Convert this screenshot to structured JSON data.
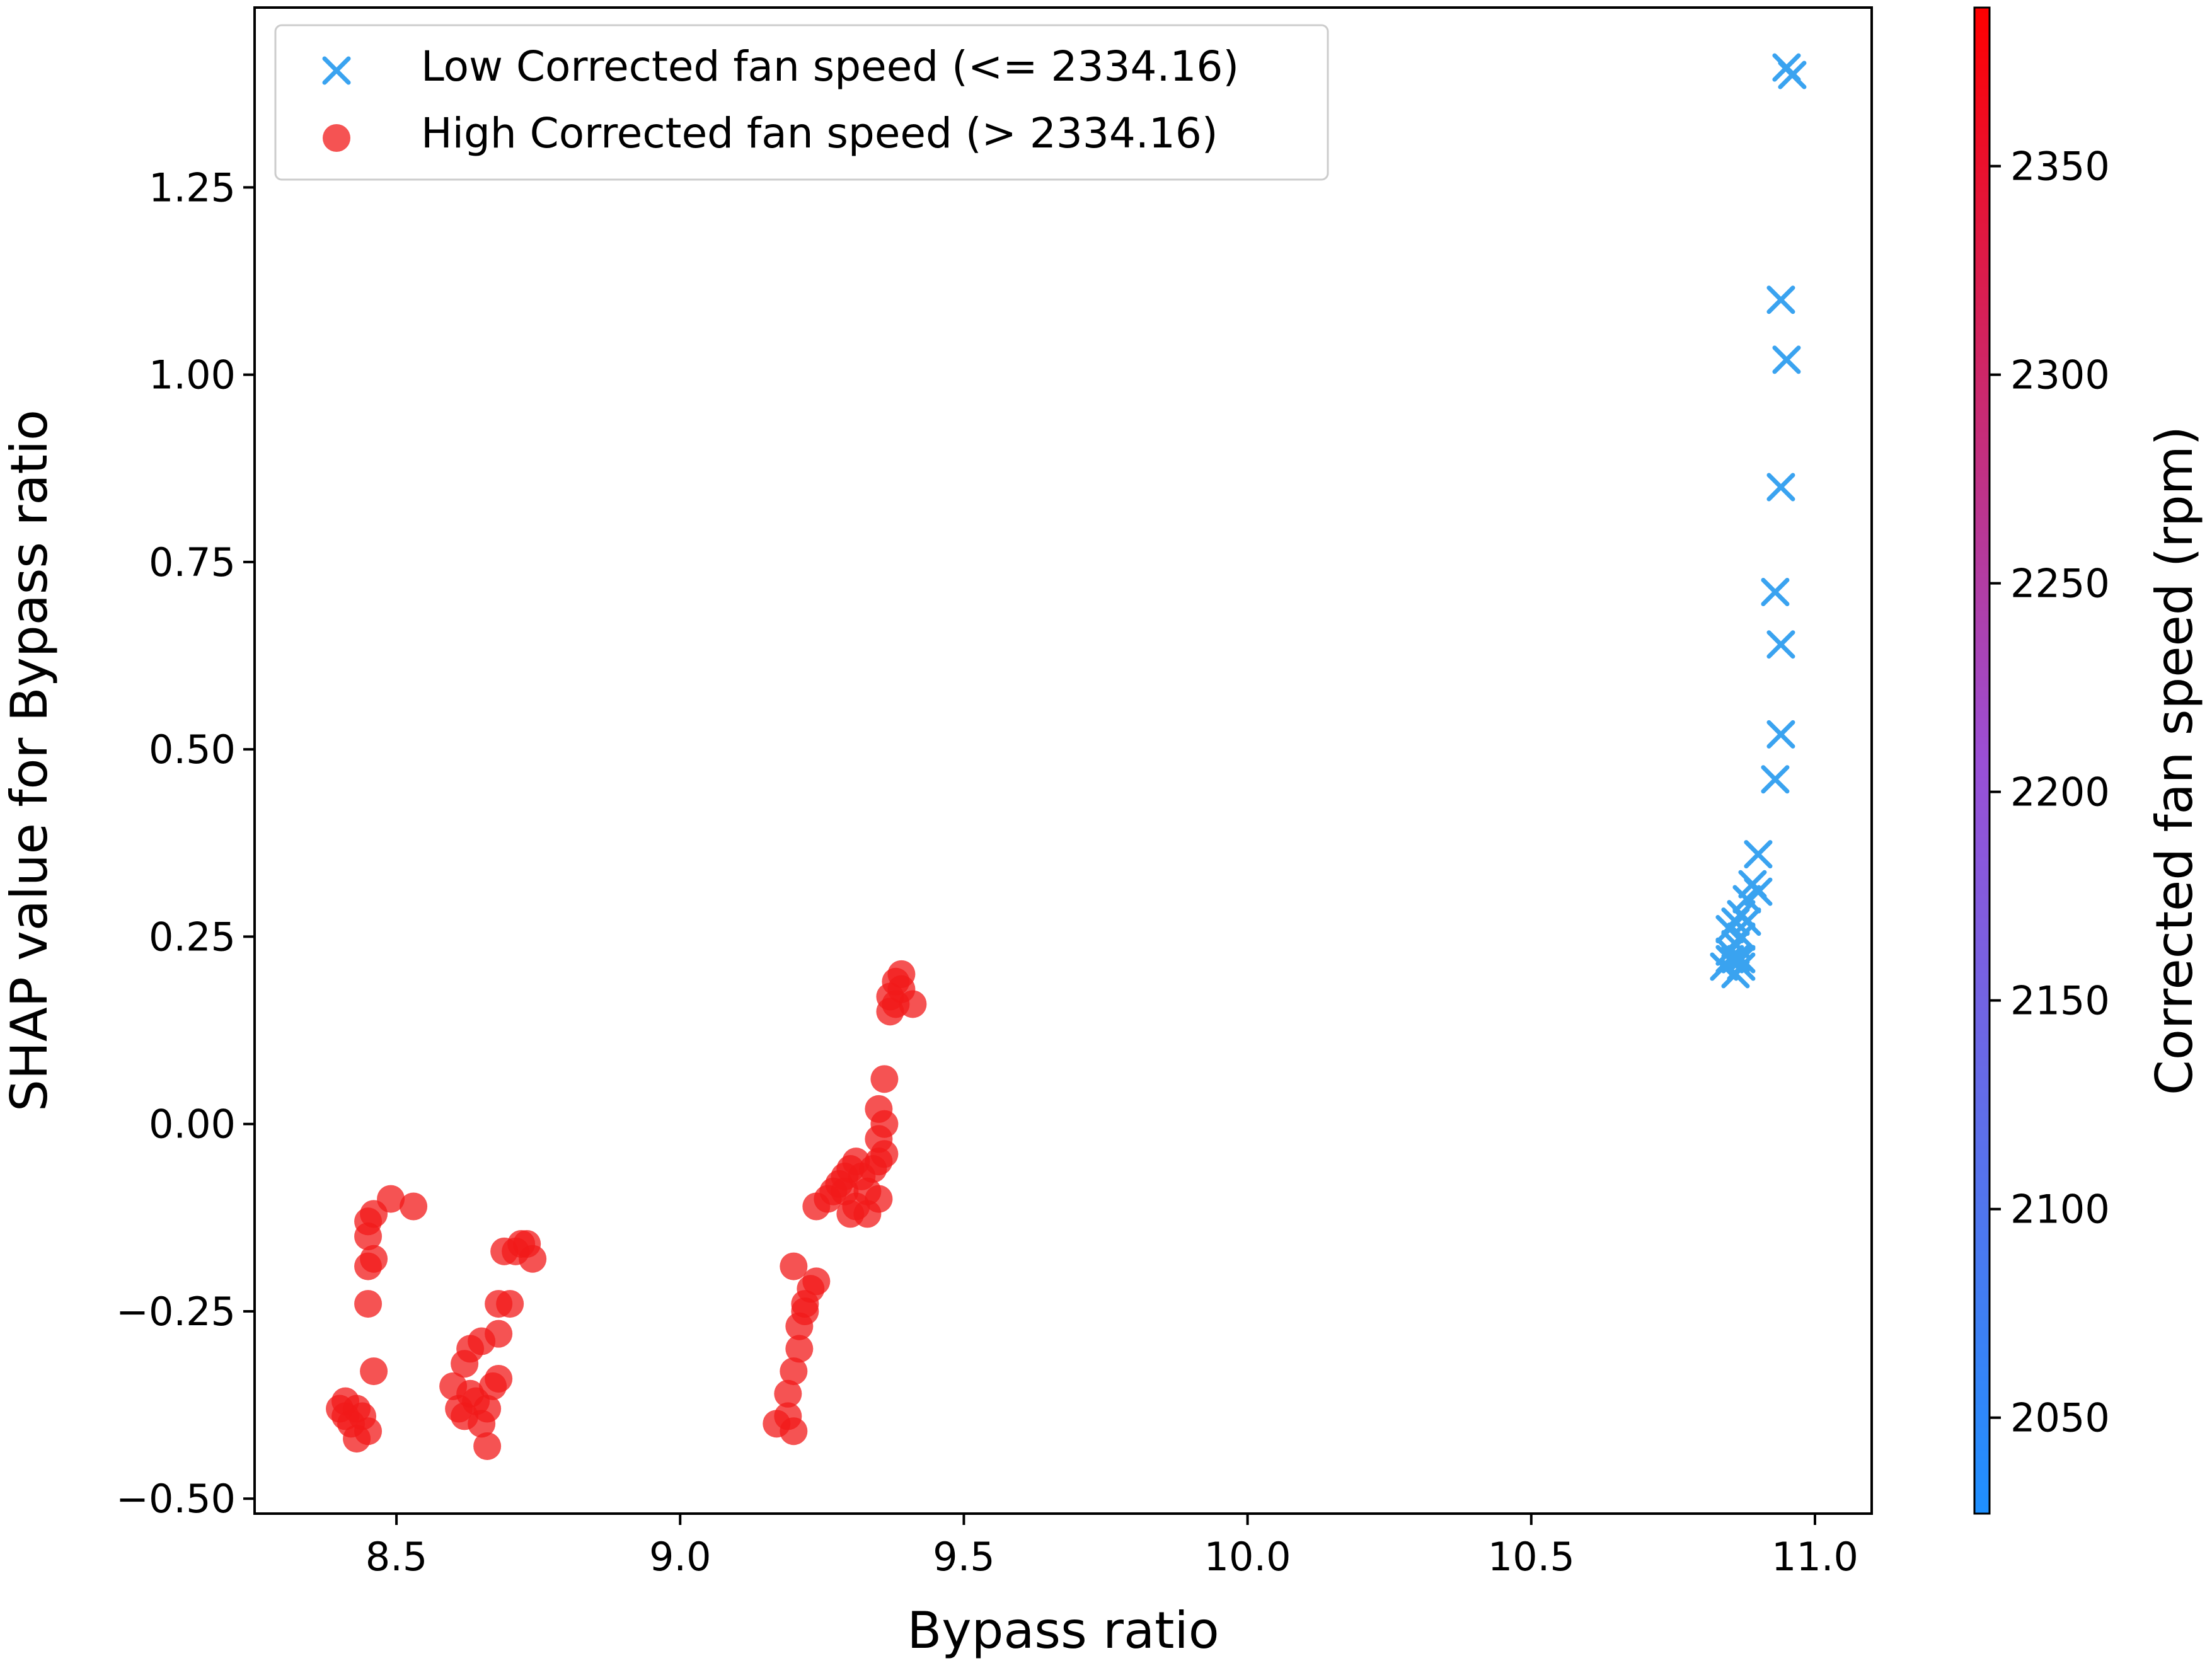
{
  "chart_data": {
    "type": "scatter",
    "xlabel": "Bypass ratio",
    "ylabel": "SHAP value for Bypass ratio",
    "xlim": [
      8.25,
      11.1
    ],
    "ylim": [
      -0.52,
      1.49
    ],
    "x_ticks": [
      8.5,
      9.0,
      9.5,
      10.0,
      10.5,
      11.0
    ],
    "x_tick_labels": [
      "8.5",
      "9.0",
      "9.5",
      "10.0",
      "10.5",
      "11.0"
    ],
    "y_ticks": [
      -0.5,
      -0.25,
      0.0,
      0.25,
      0.5,
      0.75,
      1.0,
      1.25
    ],
    "y_tick_labels": [
      "−0.50",
      "−0.25",
      "0.00",
      "0.25",
      "0.50",
      "0.75",
      "1.00",
      "1.25"
    ],
    "grid": false,
    "legend_position": "upper-left",
    "colorbar": {
      "label": "Corrected fan speed (rpm)",
      "range": [
        2027,
        2388
      ],
      "ticks": [
        2050,
        2100,
        2150,
        2200,
        2250,
        2300,
        2350
      ],
      "tick_labels": [
        "2050",
        "2100",
        "2150",
        "2200",
        "2250",
        "2300",
        "2350"
      ],
      "color_low": "#1e90ff",
      "color_high": "#ff0000"
    },
    "series": [
      {
        "name": "Low Corrected fan speed (<= 2334.16)",
        "marker": "x",
        "color": "#3aa3f0",
        "points": [
          [
            10.95,
            1.41
          ],
          [
            10.96,
            1.4
          ],
          [
            10.94,
            1.1
          ],
          [
            10.95,
            1.02
          ],
          [
            10.94,
            0.85
          ],
          [
            10.93,
            0.71
          ],
          [
            10.94,
            0.64
          ],
          [
            10.94,
            0.52
          ],
          [
            10.93,
            0.46
          ],
          [
            10.9,
            0.36
          ],
          [
            10.89,
            0.32
          ],
          [
            10.9,
            0.31
          ],
          [
            10.88,
            0.3
          ],
          [
            10.87,
            0.28
          ],
          [
            10.86,
            0.27
          ],
          [
            10.88,
            0.27
          ],
          [
            10.85,
            0.26
          ],
          [
            10.87,
            0.25
          ],
          [
            10.86,
            0.24
          ],
          [
            10.85,
            0.23
          ],
          [
            10.86,
            0.22
          ],
          [
            10.87,
            0.22
          ],
          [
            10.84,
            0.21
          ],
          [
            10.86,
            0.2
          ],
          [
            10.87,
            0.21
          ],
          [
            10.85,
            0.22
          ]
        ]
      },
      {
        "name": "High Corrected fan speed (> 2334.16)",
        "marker": "o",
        "color": "#f21a1a",
        "points": [
          [
            8.4,
            -0.38
          ],
          [
            8.41,
            -0.37
          ],
          [
            8.42,
            -0.4
          ],
          [
            8.43,
            -0.42
          ],
          [
            8.44,
            -0.39
          ],
          [
            8.45,
            -0.41
          ],
          [
            8.41,
            -0.39
          ],
          [
            8.43,
            -0.38
          ],
          [
            8.46,
            -0.33
          ],
          [
            8.45,
            -0.24
          ],
          [
            8.45,
            -0.19
          ],
          [
            8.46,
            -0.18
          ],
          [
            8.45,
            -0.15
          ],
          [
            8.45,
            -0.13
          ],
          [
            8.46,
            -0.12
          ],
          [
            8.49,
            -0.1
          ],
          [
            8.53,
            -0.11
          ],
          [
            8.6,
            -0.35
          ],
          [
            8.61,
            -0.38
          ],
          [
            8.62,
            -0.39
          ],
          [
            8.63,
            -0.36
          ],
          [
            8.64,
            -0.37
          ],
          [
            8.65,
            -0.4
          ],
          [
            8.66,
            -0.38
          ],
          [
            8.66,
            -0.43
          ],
          [
            8.67,
            -0.35
          ],
          [
            8.68,
            -0.34
          ],
          [
            8.62,
            -0.32
          ],
          [
            8.63,
            -0.3
          ],
          [
            8.65,
            -0.29
          ],
          [
            8.68,
            -0.28
          ],
          [
            8.68,
            -0.24
          ],
          [
            8.7,
            -0.24
          ],
          [
            8.69,
            -0.17
          ],
          [
            8.71,
            -0.17
          ],
          [
            8.73,
            -0.16
          ],
          [
            8.74,
            -0.18
          ],
          [
            8.72,
            -0.16
          ],
          [
            9.17,
            -0.4
          ],
          [
            9.19,
            -0.39
          ],
          [
            9.2,
            -0.41
          ],
          [
            9.19,
            -0.36
          ],
          [
            9.2,
            -0.33
          ],
          [
            9.21,
            -0.3
          ],
          [
            9.21,
            -0.27
          ],
          [
            9.22,
            -0.25
          ],
          [
            9.22,
            -0.24
          ],
          [
            9.23,
            -0.22
          ],
          [
            9.24,
            -0.21
          ],
          [
            9.2,
            -0.19
          ],
          [
            9.24,
            -0.11
          ],
          [
            9.26,
            -0.1
          ],
          [
            9.27,
            -0.09
          ],
          [
            9.28,
            -0.08
          ],
          [
            9.29,
            -0.07
          ],
          [
            9.3,
            -0.06
          ],
          [
            9.31,
            -0.05
          ],
          [
            9.32,
            -0.07
          ],
          [
            9.33,
            -0.09
          ],
          [
            9.34,
            -0.06
          ],
          [
            9.35,
            -0.05
          ],
          [
            9.36,
            -0.04
          ],
          [
            9.35,
            -0.02
          ],
          [
            9.36,
            0.0
          ],
          [
            9.35,
            0.02
          ],
          [
            9.36,
            0.06
          ],
          [
            9.37,
            0.17
          ],
          [
            9.38,
            0.19
          ],
          [
            9.39,
            0.2
          ],
          [
            9.38,
            0.16
          ],
          [
            9.39,
            0.18
          ],
          [
            9.41,
            0.16
          ],
          [
            9.37,
            0.15
          ],
          [
            9.3,
            -0.12
          ],
          [
            9.31,
            -0.11
          ],
          [
            9.33,
            -0.12
          ],
          [
            9.35,
            -0.1
          ],
          [
            9.29,
            -0.09
          ]
        ]
      }
    ]
  }
}
